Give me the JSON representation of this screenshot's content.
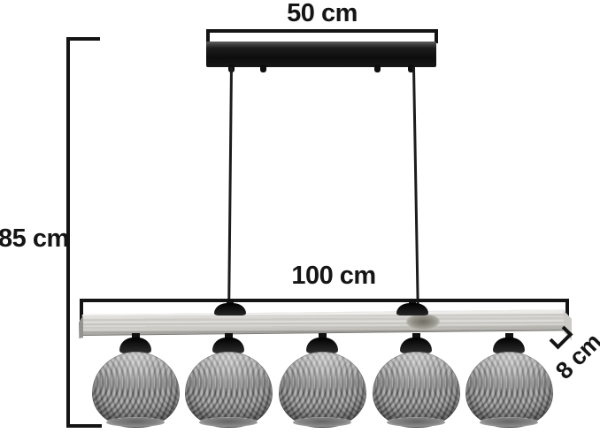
{
  "diagram": {
    "type": "product-dimension-diagram",
    "subject": "pendant lamp with wooden beam and five woven rattan ball shades",
    "dimensions": {
      "canopy_width": "50 cm",
      "total_height": "85 cm",
      "beam_length": "100 cm",
      "beam_thickness": "8 cm"
    },
    "counts": {
      "shades": 5,
      "suspension_cables": 2,
      "canopy_glands": 4
    },
    "colors": {
      "background": "#ffffff",
      "dimension_lines": "#141414",
      "metal_parts": "#151515",
      "wood_beam": "#d7d6d2",
      "wood_knot": "#8a887f",
      "shade_weave": "#9b9b9b"
    }
  }
}
